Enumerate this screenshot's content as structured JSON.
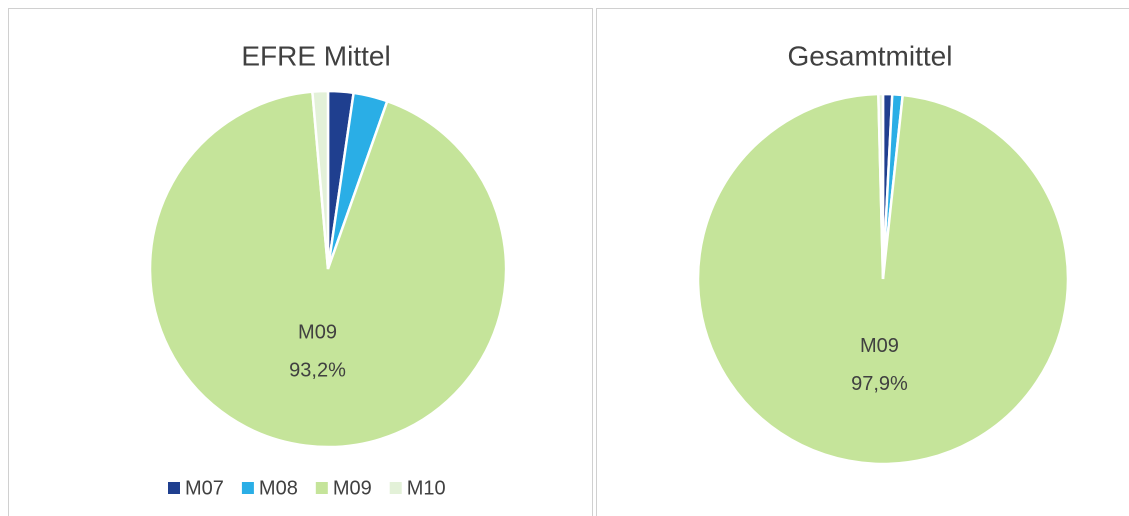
{
  "chart_data": [
    {
      "type": "pie",
      "title": "EFRE Mittel",
      "categories": [
        "M07",
        "M08",
        "M09",
        "M10"
      ],
      "values": [
        2.3,
        3.1,
        93.2,
        1.4
      ],
      "value_labels": [
        null,
        null,
        "93,2%",
        null
      ],
      "colors": [
        "#1f3f8f",
        "#2aaee6",
        "#c5e49a",
        "#e3f1d8"
      ],
      "legend": "bottom"
    },
    {
      "type": "pie",
      "title": "Gesamtmittel",
      "categories": [
        "M07",
        "M08",
        "M09",
        "M10"
      ],
      "values": [
        0.8,
        0.9,
        97.9,
        0.4
      ],
      "value_labels": [
        null,
        null,
        "97,9%",
        null
      ],
      "colors": [
        "#1f3f8f",
        "#2aaee6",
        "#c5e49a",
        "#e3f1d8"
      ],
      "legend": null
    }
  ]
}
